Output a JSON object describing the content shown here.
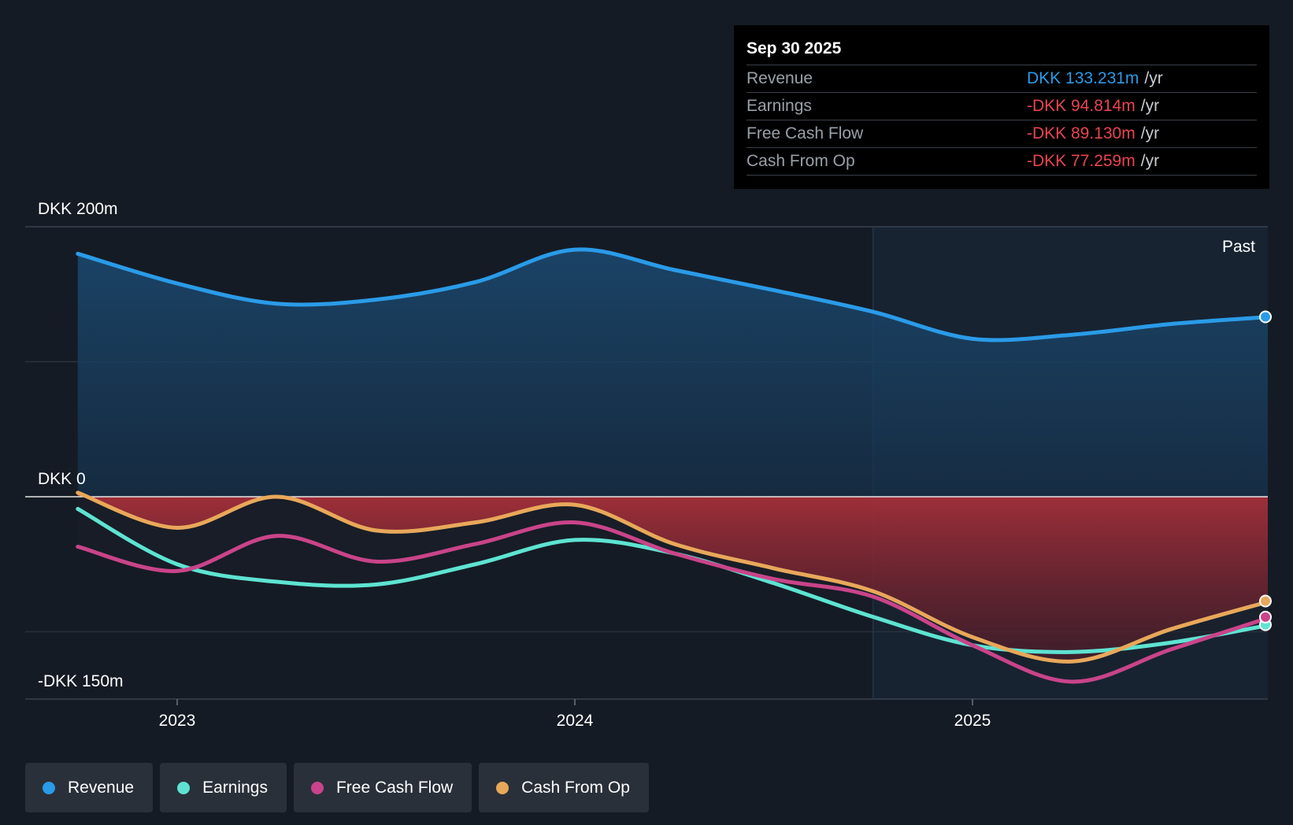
{
  "chart_data": {
    "type": "area",
    "y_top_label": "DKK 200m",
    "y_zero_label": "DKK 0",
    "y_bottom_label": "-DKK 150m",
    "ylim": [
      -150,
      200
    ],
    "x_ticks": [
      "2023",
      "2024",
      "2025"
    ],
    "x_tick_values": [
      2023.0,
      2024.0,
      2025.0
    ],
    "xlim": [
      2022.63,
      2025.75
    ],
    "past_label": "Past",
    "past_region_start": 2024.75,
    "series": [
      {
        "name": "Revenue",
        "color": "#2a9be8",
        "x": [
          2022.75,
          2023.0,
          2023.25,
          2023.5,
          2023.75,
          2024.0,
          2024.25,
          2024.5,
          2024.75,
          2025.0,
          2025.25,
          2025.5,
          2025.75
        ],
        "values": [
          180,
          158,
          143,
          146,
          159,
          183,
          168,
          153,
          137,
          117,
          120,
          128,
          133.231
        ]
      },
      {
        "name": "Earnings",
        "color": "#5ee3d2",
        "x": [
          2022.75,
          2023.0,
          2023.25,
          2023.5,
          2023.75,
          2024.0,
          2024.25,
          2024.5,
          2024.75,
          2025.0,
          2025.25,
          2025.5,
          2025.75
        ],
        "values": [
          -9,
          -50,
          -63,
          -65,
          -50,
          -32,
          -42,
          -64,
          -89,
          -110,
          -115,
          -108,
          -94.814
        ]
      },
      {
        "name": "Free Cash Flow",
        "color": "#c9448a",
        "x": [
          2022.75,
          2023.0,
          2023.25,
          2023.5,
          2023.75,
          2024.0,
          2024.25,
          2024.5,
          2024.75,
          2025.0,
          2025.25,
          2025.5,
          2025.75
        ],
        "values": [
          -37,
          -55,
          -29,
          -48,
          -35,
          -19,
          -42,
          -61,
          -74,
          -110,
          -137,
          -113,
          -89.13
        ]
      },
      {
        "name": "Cash From Op",
        "color": "#e8a85a",
        "x": [
          2022.75,
          2023.0,
          2023.25,
          2023.5,
          2023.75,
          2024.0,
          2024.25,
          2024.5,
          2024.75,
          2025.0,
          2025.25,
          2025.5,
          2025.75
        ],
        "values": [
          3,
          -23,
          0,
          -25,
          -19,
          -6,
          -35,
          -53,
          -70,
          -104,
          -122,
          -98,
          -77.259
        ]
      }
    ]
  },
  "tooltip": {
    "date": "Sep 30 2025",
    "unit": "/yr",
    "rows": [
      {
        "label": "Revenue",
        "value": "DKK 133.231m",
        "color": "#2a9be8"
      },
      {
        "label": "Earnings",
        "value": "-DKK 94.814m",
        "color": "#e8454f"
      },
      {
        "label": "Free Cash Flow",
        "value": "-DKK 89.130m",
        "color": "#e8454f"
      },
      {
        "label": "Cash From Op",
        "value": "-DKK 77.259m",
        "color": "#e8454f"
      }
    ]
  },
  "legend": [
    {
      "label": "Revenue",
      "color": "#2a9be8"
    },
    {
      "label": "Earnings",
      "color": "#5ee3d2"
    },
    {
      "label": "Free Cash Flow",
      "color": "#c9448a"
    },
    {
      "label": "Cash From Op",
      "color": "#e8a85a"
    }
  ]
}
